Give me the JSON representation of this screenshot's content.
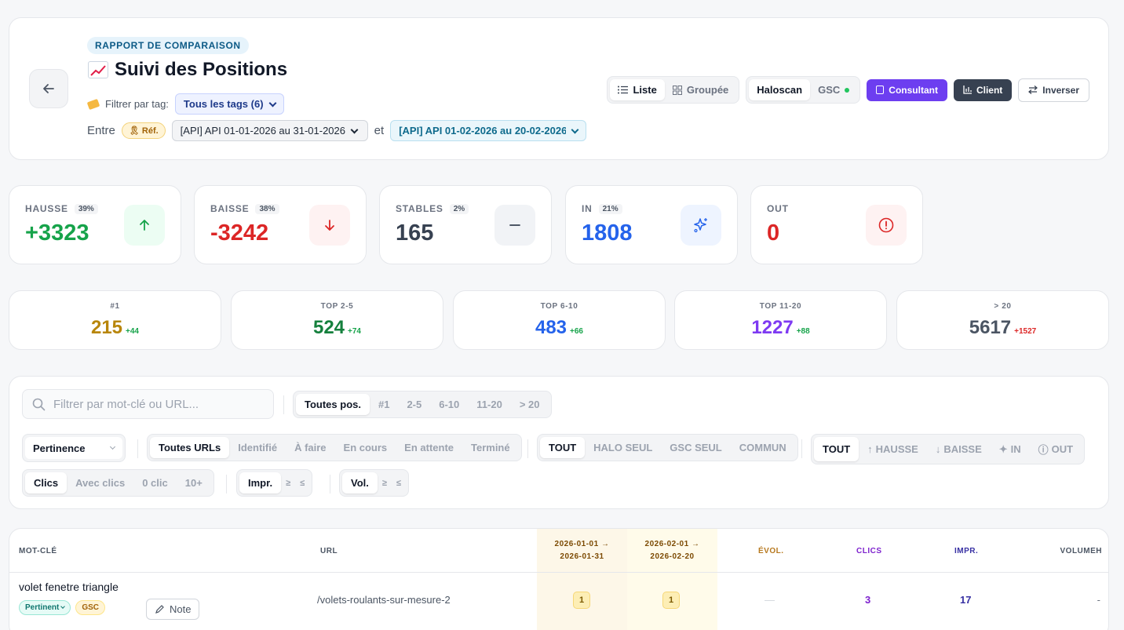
{
  "header": {
    "report_badge": "RAPPORT DE COMPARAISON",
    "title": "Suivi des Positions",
    "filter_label": "Filtrer par tag:",
    "tag_select": "Tous les tags (6)",
    "between": "Entre",
    "ref_badge": "Réf.",
    "period_a": "[API] API 01-01-2026 au 31-01-2026",
    "and": "et",
    "period_b": "[API] API 01-02-2026 au 20-02-2026",
    "view_list": "Liste",
    "view_grouped": "Groupée",
    "source_haloscan": "Haloscan",
    "source_gsc": "GSC",
    "btn_consultant": "Consultant",
    "btn_client": "Client",
    "btn_invert": "Inverser"
  },
  "stats": [
    {
      "label": "HAUSSE",
      "pct": "39%",
      "value": "+3323",
      "color": "#16a34a",
      "bg": "#ecfdf3",
      "icon": "arrow-up"
    },
    {
      "label": "BAISSE",
      "pct": "38%",
      "value": "-3242",
      "color": "#dc2626",
      "bg": "#fef2f2",
      "icon": "arrow-down"
    },
    {
      "label": "STABLES",
      "pct": "2%",
      "value": "165",
      "color": "#374151",
      "bg": "#f1f3f6",
      "icon": "minus"
    },
    {
      "label": "IN",
      "pct": "21%",
      "value": "1808",
      "color": "#2563eb",
      "bg": "#eef4ff",
      "icon": "sparkles"
    },
    {
      "label": "OUT",
      "pct": "",
      "value": "0",
      "color": "#dc2626",
      "bg": "#fef2f2",
      "icon": "alert-circle"
    }
  ],
  "buckets": [
    {
      "label": "#1",
      "value": "215",
      "delta": "+44",
      "color": "#b8860b",
      "delta_color": "#16a34a"
    },
    {
      "label": "TOP 2-5",
      "value": "524",
      "delta": "+74",
      "color": "#15803d",
      "delta_color": "#16a34a"
    },
    {
      "label": "TOP 6-10",
      "value": "483",
      "delta": "+66",
      "color": "#2563eb",
      "delta_color": "#16a34a"
    },
    {
      "label": "TOP 11-20",
      "value": "1227",
      "delta": "+88",
      "color": "#7e3af2",
      "delta_color": "#16a34a"
    },
    {
      "label": "> 20",
      "value": "5617",
      "delta": "+1527",
      "color": "#4b5563",
      "delta_color": "#dc2626"
    }
  ],
  "filters": {
    "search_placeholder": "Filtrer par mot-clé ou URL...",
    "positions": [
      "Toutes pos.",
      "#1",
      "2-5",
      "6-10",
      "11-20",
      "> 20"
    ],
    "sort": "Pertinence",
    "urls": [
      "Toutes URLs",
      "Identifié",
      "À faire",
      "En cours",
      "En attente",
      "Terminé"
    ],
    "sources": [
      "TOUT",
      "HALO SEUL",
      "GSC SEUL",
      "COMMUN"
    ],
    "movements": [
      "TOUT",
      "HAUSSE",
      "BAISSE",
      "IN",
      "OUT"
    ],
    "clicks": [
      "Clics",
      "Avec clics",
      "0 clic",
      "10+"
    ],
    "impr": [
      "Impr.",
      "≥",
      "≤"
    ],
    "vol": [
      "Vol.",
      "≥",
      "≤"
    ]
  },
  "table": {
    "headers": {
      "keyword": "MOT-CLÉ",
      "url": "URL",
      "date1a": "2026-01-01 →",
      "date1b": "2026-01-31",
      "date2a": "2026-02-01 →",
      "date2b": "2026-02-20",
      "evol": "ÉVOL.",
      "clics": "CLICS",
      "impr": "IMPR.",
      "volume": "VOLUMEH"
    },
    "rows": [
      {
        "keyword": "volet fenetre triangle",
        "tag1": "Pertinent",
        "tag2": "GSC",
        "note": "Note",
        "url": "/volets-roulants-sur-mesure-2",
        "pos1": "1",
        "pos2": "1",
        "evol": "—",
        "clics": "3",
        "impr": "17",
        "volume": "-"
      }
    ]
  }
}
